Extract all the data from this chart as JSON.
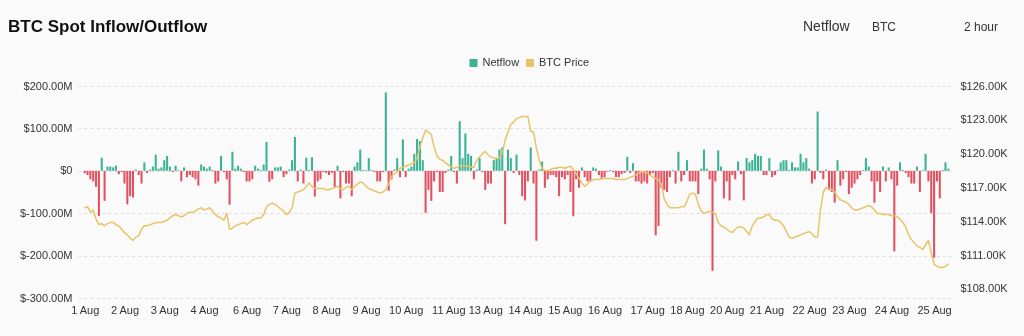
{
  "chart_data": {
    "type": "bar",
    "title": "BTC Spot Inflow/Outflow",
    "annotations": [
      "Netflow",
      "BTC",
      "2 hour"
    ],
    "categories": [
      "1 Aug",
      null,
      null,
      null,
      null,
      null,
      null,
      null,
      null,
      null,
      null,
      null,
      null,
      null,
      "2 Aug",
      null,
      null,
      null,
      null,
      null,
      null,
      null,
      null,
      null,
      null,
      null,
      null,
      null,
      "3 Aug",
      null,
      null,
      null,
      null,
      null,
      null,
      null,
      null,
      null,
      null,
      null,
      null,
      null,
      "4 Aug",
      null,
      null,
      null,
      null,
      null,
      null,
      null,
      null,
      null,
      null,
      null,
      null,
      null,
      null,
      "6 Aug",
      null,
      null,
      null,
      null,
      null,
      null,
      null,
      null,
      null,
      null,
      null,
      null,
      null,
      "7 Aug",
      null,
      null,
      null,
      null,
      null,
      null,
      null,
      null,
      null,
      null,
      null,
      null,
      null,
      "8 Aug",
      null,
      null,
      null,
      null,
      null,
      null,
      null,
      null,
      null,
      null,
      null,
      null,
      null,
      "9 Aug",
      null,
      null,
      null,
      null,
      null,
      null,
      null,
      null,
      null,
      null,
      null,
      null,
      null,
      "10 Aug",
      null,
      null,
      null,
      null,
      null,
      null,
      null,
      null,
      null,
      null,
      null,
      null,
      null,
      null,
      "11 Aug",
      null,
      null,
      null,
      null,
      null,
      null,
      null,
      null,
      null,
      null,
      null,
      null,
      "13 Aug",
      null,
      null,
      null,
      null,
      null,
      null,
      null,
      null,
      null,
      null,
      null,
      null,
      null,
      "14 Aug",
      null,
      null,
      null,
      null,
      null,
      null,
      null,
      null,
      null,
      null,
      null,
      null,
      null,
      "15 Aug",
      null,
      null,
      null,
      null,
      null,
      null,
      null,
      null,
      null,
      null,
      null,
      null,
      null,
      "16 Aug",
      null,
      null,
      null,
      null,
      null,
      null,
      null,
      null,
      null,
      null,
      null,
      null,
      null,
      null,
      "17 Aug",
      null,
      null,
      null,
      null,
      null,
      null,
      null,
      null,
      null,
      null,
      null,
      null,
      null,
      "18 Aug",
      null,
      null,
      null,
      null,
      null,
      null,
      null,
      null,
      null,
      null,
      null,
      null,
      null,
      "20 Aug",
      null,
      null,
      null,
      null,
      null,
      null,
      null,
      null,
      null,
      null,
      null,
      null,
      null,
      "21 Aug",
      null,
      null,
      null,
      null,
      null,
      null,
      null,
      null,
      null,
      null,
      null,
      null,
      null,
      null,
      "22 Aug",
      null,
      null,
      null,
      null,
      null,
      null,
      null,
      null,
      null,
      null,
      null,
      null,
      null,
      "23 Aug",
      null,
      null,
      null,
      null,
      null,
      null,
      null,
      null,
      null,
      null,
      null,
      null,
      null,
      null,
      "24 Aug",
      null,
      null,
      null,
      null,
      null,
      null,
      null,
      null,
      null,
      null,
      null,
      null,
      null,
      null,
      "25 Aug",
      null,
      null,
      null,
      null,
      null
    ],
    "series": [
      {
        "name": "Netflow",
        "color": "#3ab394",
        "values": [
          -6,
          -10,
          -20,
          -25,
          -38,
          -107,
          31,
          -71,
          10,
          10,
          8,
          12,
          -8,
          -3,
          -30,
          -79,
          -60,
          -63,
          3,
          -10,
          -30,
          20,
          -5,
          3,
          10,
          38,
          5,
          8,
          25,
          35,
          10,
          -3,
          12,
          2,
          -25,
          8,
          -15,
          -10,
          -15,
          -20,
          -35,
          15,
          10,
          5,
          10,
          2,
          -30,
          -25,
          35,
          -3,
          -20,
          -80,
          45,
          5,
          12,
          5,
          -3,
          -25,
          -25,
          -20,
          12,
          5,
          2,
          15,
          68,
          -26,
          -20,
          8,
          8,
          10,
          -15,
          -8,
          3,
          25,
          80,
          -25,
          3,
          -30,
          31,
          2,
          32,
          -61,
          -25,
          -20,
          -3,
          -5,
          -10,
          -5,
          -40,
          12,
          -65,
          -3,
          -30,
          -30,
          -60,
          10,
          20,
          50,
          2,
          2,
          30,
          2,
          -3,
          -25,
          -25,
          -3,
          185,
          -47,
          -20,
          3,
          30,
          -15,
          74,
          -15,
          5,
          10,
          40,
          75,
          70,
          25,
          -99,
          -45,
          -71,
          -25,
          -3,
          -50,
          -50,
          -5,
          3,
          35,
          -3,
          -30,
          117,
          30,
          88,
          40,
          35,
          -20,
          3,
          30,
          -3,
          -45,
          -30,
          -30,
          25,
          30,
          50,
          55,
          -126,
          50,
          30,
          -5,
          38,
          -10,
          -60,
          -70,
          -25,
          55,
          -30,
          -165,
          3,
          22,
          -40,
          -20,
          -10,
          -10,
          -15,
          -60,
          -15,
          -20,
          -10,
          -50,
          -107,
          -20,
          -40,
          8,
          -15,
          -25,
          -25,
          8,
          5,
          -10,
          -20,
          -15,
          -2,
          2,
          -3,
          -15,
          -15,
          -8,
          -5,
          33,
          -5,
          18,
          -25,
          -25,
          -30,
          -25,
          -30,
          -10,
          -5,
          -152,
          -130,
          -40,
          -45,
          -50,
          -15,
          2,
          -30,
          45,
          -25,
          -10,
          25,
          -25,
          -25,
          -25,
          -55,
          5,
          50,
          5,
          -20,
          -236,
          -25,
          48,
          10,
          -65,
          -25,
          -70,
          -10,
          -20,
          22,
          -8,
          -70,
          30,
          20,
          25,
          40,
          35,
          35,
          -10,
          -10,
          30,
          -15,
          -10,
          2,
          20,
          25,
          25,
          2,
          20,
          8,
          8,
          40,
          20,
          30,
          5,
          -30,
          -20,
          140,
          -5,
          -20,
          3,
          -45,
          -50,
          -75,
          25,
          -35,
          -20,
          -3,
          -55,
          -40,
          -30,
          -20,
          -10,
          2,
          30,
          10,
          -25,
          -75,
          -25,
          -50,
          10,
          -25,
          8,
          -20,
          -190,
          -35,
          20,
          2,
          -5,
          -15,
          -30,
          -30,
          10,
          -50,
          2,
          40,
          -25,
          -100,
          -205,
          -25,
          -65,
          2,
          20,
          5
        ],
        "colors": [
          "#e05260",
          "#e05260",
          "#e05260",
          "#e05260",
          "#e05260",
          "#e05260",
          "#3ab394",
          "#e05260",
          "#3ab394",
          "#3ab394",
          "#3ab394",
          "#3ab394",
          "#e05260",
          "#e05260",
          "#e05260",
          "#e05260",
          "#e05260",
          "#e05260",
          "#3ab394",
          "#e05260",
          "#e05260",
          "#3ab394",
          "#e05260",
          "#3ab394",
          "#3ab394",
          "#3ab394",
          "#3ab394",
          "#3ab394",
          "#3ab394",
          "#3ab394",
          "#3ab394",
          "#e05260",
          "#3ab394",
          "#3ab394",
          "#e05260",
          "#3ab394",
          "#e05260",
          "#e05260",
          "#e05260",
          "#e05260",
          "#e05260",
          "#3ab394",
          "#3ab394",
          "#3ab394",
          "#3ab394",
          "#3ab394",
          "#e05260",
          "#e05260",
          "#3ab394",
          "#e05260",
          "#e05260",
          "#e05260",
          "#3ab394",
          "#3ab394",
          "#3ab394",
          "#3ab394",
          "#e05260",
          "#e05260",
          "#e05260",
          "#e05260",
          "#3ab394",
          "#3ab394",
          "#3ab394",
          "#3ab394",
          "#3ab394",
          "#e05260",
          "#e05260",
          "#3ab394",
          "#3ab394",
          "#3ab394",
          "#e05260",
          "#e05260",
          "#3ab394",
          "#3ab394",
          "#3ab394",
          "#e05260",
          "#3ab394",
          "#e05260",
          "#3ab394",
          "#3ab394",
          "#3ab394",
          "#e05260",
          "#e05260",
          "#e05260",
          "#e05260",
          "#e05260",
          "#e05260",
          "#e05260",
          "#e05260",
          "#3ab394",
          "#e05260",
          "#e05260",
          "#e05260",
          "#e05260",
          "#e05260",
          "#3ab394",
          "#3ab394",
          "#3ab394",
          "#3ab394",
          "#3ab394",
          "#3ab394",
          "#3ab394",
          "#e05260",
          "#e05260",
          "#e05260",
          "#e05260",
          "#3ab394",
          "#e05260",
          "#e05260",
          "#3ab394",
          "#3ab394",
          "#e05260",
          "#3ab394",
          "#e05260",
          "#3ab394",
          "#3ab394",
          "#3ab394",
          "#3ab394",
          "#3ab394",
          "#3ab394",
          "#e05260",
          "#e05260",
          "#e05260",
          "#e05260",
          "#e05260",
          "#e05260",
          "#e05260",
          "#e05260",
          "#3ab394",
          "#3ab394",
          "#e05260",
          "#e05260",
          "#3ab394",
          "#3ab394",
          "#3ab394",
          "#3ab394",
          "#3ab394",
          "#e05260",
          "#3ab394",
          "#3ab394",
          "#e05260",
          "#e05260",
          "#e05260",
          "#e05260",
          "#3ab394",
          "#3ab394",
          "#3ab394",
          "#3ab394",
          "#e05260",
          "#3ab394",
          "#3ab394",
          "#e05260",
          "#3ab394",
          "#e05260",
          "#e05260",
          "#e05260",
          "#e05260",
          "#3ab394",
          "#e05260",
          "#e05260",
          "#3ab394",
          "#3ab394",
          "#e05260",
          "#e05260",
          "#e05260",
          "#e05260",
          "#e05260",
          "#e05260",
          "#e05260",
          "#e05260",
          "#e05260",
          "#e05260",
          "#e05260",
          "#e05260",
          "#e05260",
          "#3ab394",
          "#e05260",
          "#e05260",
          "#e05260",
          "#3ab394",
          "#3ab394",
          "#e05260",
          "#e05260",
          "#e05260",
          "#e05260",
          "#3ab394",
          "#e05260",
          "#e05260",
          "#e05260",
          "#e05260",
          "#e05260",
          "#3ab394",
          "#e05260",
          "#3ab394",
          "#e05260",
          "#e05260",
          "#e05260",
          "#e05260",
          "#e05260",
          "#e05260",
          "#e05260",
          "#e05260",
          "#e05260",
          "#e05260",
          "#e05260",
          "#e05260",
          "#e05260",
          "#3ab394",
          "#e05260",
          "#3ab394",
          "#e05260",
          "#e05260",
          "#3ab394",
          "#e05260",
          "#e05260",
          "#e05260",
          "#e05260",
          "#3ab394",
          "#3ab394",
          "#3ab394",
          "#e05260",
          "#e05260",
          "#e05260",
          "#3ab394",
          "#3ab394",
          "#e05260",
          "#e05260",
          "#e05260",
          "#e05260",
          "#e05260",
          "#3ab394",
          "#e05260",
          "#e05260",
          "#3ab394",
          "#3ab394",
          "#3ab394",
          "#3ab394",
          "#3ab394",
          "#3ab394",
          "#e05260",
          "#e05260",
          "#3ab394",
          "#e05260",
          "#e05260",
          "#3ab394",
          "#3ab394",
          "#3ab394",
          "#3ab394",
          "#3ab394",
          "#3ab394",
          "#3ab394",
          "#3ab394",
          "#3ab394",
          "#3ab394",
          "#3ab394",
          "#3ab394",
          "#e05260",
          "#e05260",
          "#3ab394",
          "#e05260",
          "#e05260",
          "#3ab394",
          "#e05260",
          "#e05260",
          "#e05260",
          "#3ab394",
          "#e05260",
          "#e05260",
          "#e05260",
          "#e05260",
          "#e05260",
          "#e05260",
          "#e05260",
          "#e05260",
          "#3ab394",
          "#3ab394",
          "#3ab394",
          "#e05260",
          "#e05260",
          "#e05260",
          "#e05260",
          "#3ab394",
          "#e05260",
          "#3ab394",
          "#e05260",
          "#e05260",
          "#e05260",
          "#3ab394",
          "#3ab394",
          "#e05260",
          "#e05260",
          "#e05260",
          "#e05260",
          "#3ab394",
          "#e05260",
          "#3ab394",
          "#3ab394",
          "#e05260",
          "#e05260",
          "#e05260",
          "#e05260",
          "#e05260",
          "#3ab394",
          "#3ab394",
          "#3ab394"
        ]
      },
      {
        "name": "BTC Price",
        "type": "line",
        "axis": "y2",
        "color": "#e8c468",
        "values": [
          115.2,
          115.3,
          114.8,
          115.0,
          114.2,
          113.7,
          113.8,
          113.6,
          113.8,
          113.9,
          113.9,
          113.7,
          113.6,
          113.3,
          113.0,
          112.8,
          112.5,
          112.3,
          112.6,
          112.7,
          113.3,
          113.6,
          113.6,
          113.7,
          113.8,
          113.9,
          113.9,
          113.9,
          114.0,
          114.1,
          114.3,
          114.5,
          114.6,
          114.5,
          114.4,
          114.5,
          114.7,
          114.8,
          114.8,
          114.9,
          115.1,
          115.2,
          115.0,
          115.1,
          115.2,
          114.9,
          114.6,
          114.4,
          114.3,
          114.1,
          114.7,
          113.3,
          113.4,
          113.6,
          113.7,
          113.8,
          113.9,
          113.7,
          113.9,
          114.1,
          114.2,
          114.3,
          114.3,
          114.6,
          115.3,
          115.5,
          115.6,
          115.5,
          115.3,
          115.1,
          114.9,
          114.6,
          114.8,
          115.2,
          116.5,
          116.6,
          116.7,
          116.8,
          117.1,
          117.4,
          117.1,
          116.9,
          116.9,
          116.9,
          116.9,
          116.8,
          116.8,
          116.9,
          117.0,
          117.1,
          116.9,
          116.8,
          117.0,
          117.1,
          116.8,
          117.1,
          117.3,
          117.5,
          117.4,
          117.1,
          116.9,
          116.8,
          116.7,
          116.6,
          116.5,
          116.6,
          116.8,
          117.3,
          118.0,
          118.2,
          118.4,
          118.7,
          118.8,
          118.9,
          119.0,
          119.1,
          119.2,
          119.6,
          120.6,
          121.4,
          122.1,
          121.9,
          121.7,
          120.6,
          119.8,
          119.5,
          119.4,
          119.2,
          119.0,
          118.8,
          118.7,
          118.8,
          118.9,
          118.9,
          118.9,
          118.9,
          118.8,
          118.8,
          119.4,
          119.7,
          120.0,
          120.2,
          119.9,
          119.7,
          119.6,
          119.6,
          119.6,
          120.1,
          121.2,
          121.9,
          122.6,
          122.8,
          123.1,
          123.2,
          123.3,
          123.3,
          123.3,
          122.0,
          121.9,
          120.5,
          119.4,
          118.7,
          118.5,
          118.5,
          118.6,
          118.7,
          118.7,
          118.8,
          118.8,
          118.7,
          118.8,
          118.9,
          118.6,
          118.2,
          117.8,
          117.4,
          117.1,
          117.3,
          117.6,
          117.7,
          117.7,
          117.7,
          117.8,
          117.8,
          117.8,
          117.8,
          117.8,
          117.7,
          117.7,
          117.7,
          117.7,
          117.8,
          117.9,
          118.0,
          118.1,
          118.3,
          118.4,
          118.4,
          118.3,
          118.1,
          117.9,
          117.8,
          117.7,
          117.3,
          116.0,
          115.5,
          115.2,
          115.2,
          115.2,
          115.2,
          115.3,
          115.3,
          115.8,
          116.4,
          116.5,
          116.4,
          115.5,
          114.9,
          114.7,
          114.8,
          114.9,
          114.8,
          114.7,
          113.9,
          113.6,
          113.5,
          113.3,
          113.1,
          113.0,
          113.3,
          113.5,
          113.5,
          113.4,
          113.1,
          112.8,
          113.6,
          114.0,
          114.3,
          114.3,
          114.4,
          114.6,
          114.6,
          114.2,
          114.1,
          114.1,
          113.9,
          113.6,
          113.1,
          112.6,
          112.5,
          112.6,
          112.7,
          112.8,
          112.9,
          113.0,
          113.1,
          112.9,
          112.6,
          112.6,
          115.0,
          116.6,
          117.0,
          116.9,
          116.8,
          116.6,
          116.2,
          115.9,
          115.8,
          115.7,
          115.5,
          115.2,
          115.0,
          115.0,
          115.1,
          115.2,
          115.3,
          115.4,
          115.3,
          115.0,
          114.7,
          114.7,
          114.6,
          114.6,
          114.6,
          114.5,
          114.5,
          114.4,
          114.2,
          113.9,
          113.5,
          112.8,
          112.4,
          112.1,
          111.8,
          111.7,
          111.5,
          111.9,
          112.3,
          111.2,
          110.2,
          110.0,
          109.9,
          109.9,
          110.0,
          110.2
        ]
      }
    ],
    "ylim": [
      -300,
      200
    ],
    "yticks": [
      {
        "value": 200,
        "label": "$200.00M"
      },
      {
        "value": 100,
        "label": "$100.00M"
      },
      {
        "value": 0,
        "label": "$0"
      },
      {
        "value": -100,
        "label": "$-100.00M"
      },
      {
        "value": -200,
        "label": "$-200.00M"
      },
      {
        "value": -300,
        "label": "$-300.00M"
      }
    ],
    "y2lim": [
      107.2,
      126
    ],
    "y2ticks": [
      {
        "value": 126,
        "label": "$126.00K"
      },
      {
        "value": 123,
        "label": "$123.00K"
      },
      {
        "value": 120,
        "label": "$120.00K"
      },
      {
        "value": 117,
        "label": "$117.00K"
      },
      {
        "value": 114,
        "label": "$114.00K"
      },
      {
        "value": 111,
        "label": "$111.00K"
      },
      {
        "value": 108,
        "label": "$108.00K"
      }
    ],
    "grid": "y",
    "legend": "top"
  }
}
